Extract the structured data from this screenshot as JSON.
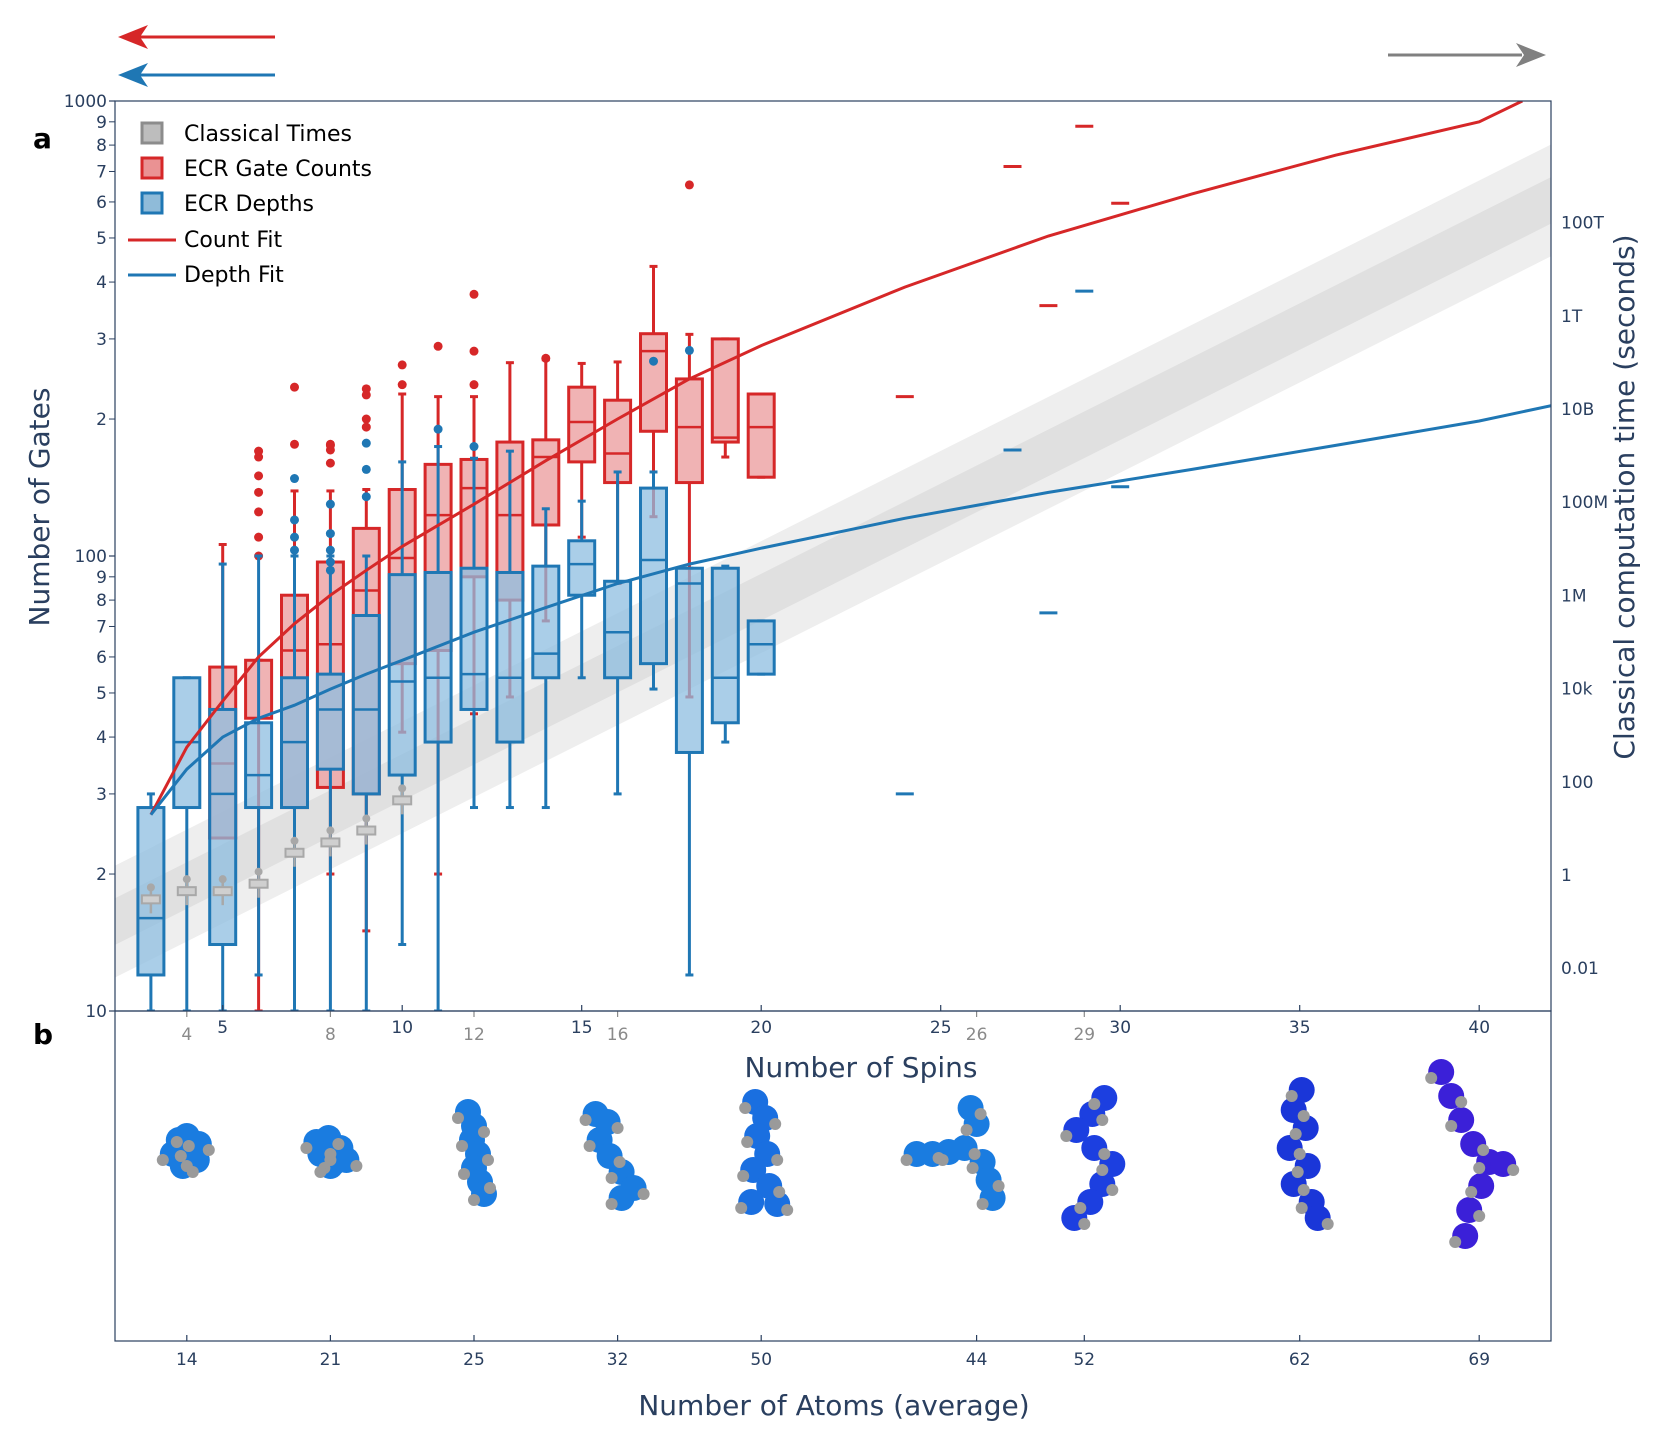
{
  "chart_data": {
    "type": "box",
    "panel_labels": {
      "a": "a",
      "b": "b"
    },
    "x_axis": {
      "title": "Number of Spins",
      "range": [
        2,
        42
      ],
      "ticks_main": [
        "5",
        "10",
        "15",
        "20",
        "25",
        "30",
        "35",
        "40"
      ],
      "ticks_molecule": [
        "4",
        "8",
        "12",
        "16",
        "26",
        "29"
      ]
    },
    "y_axis_left": {
      "title": "Number of Gates",
      "scale": "log",
      "range": [
        10,
        1000
      ],
      "major_labels": [
        "10",
        "100",
        "1000"
      ],
      "minor_labels": [
        "2",
        "3",
        "4",
        "5",
        "6",
        "7",
        "8",
        "9"
      ]
    },
    "y_axis_right": {
      "title": "Classical computation time (seconds)",
      "scale": "log",
      "labels": [
        {
          "text": "0.01",
          "value": 0.01
        },
        {
          "text": "1",
          "value": 1
        },
        {
          "text": "100",
          "value": 100
        },
        {
          "text": "10k",
          "value": 10000
        },
        {
          "text": "1M",
          "value": 1000000
        },
        {
          "text": "100M",
          "value": 100000000
        },
        {
          "text": "10B",
          "value": 10000000000
        },
        {
          "text": "1T",
          "value": 1000000000000
        },
        {
          "text": "100T",
          "value": 100000000000000
        }
      ]
    },
    "legend": [
      {
        "label": "Classical Times",
        "kind": "box",
        "color": "#8c8c8c"
      },
      {
        "label": "ECR Gate Counts",
        "kind": "box",
        "color": "#d62728"
      },
      {
        "label": "ECR Depths",
        "kind": "box",
        "color": "#1f77b4"
      },
      {
        "label": "Count Fit",
        "kind": "line",
        "color": "#d62728"
      },
      {
        "label": "Depth Fit",
        "kind": "line",
        "color": "#1f77b4"
      }
    ],
    "colors": {
      "count": "#d62728",
      "depth": "#1f77b4",
      "classical": "#8c8c8c",
      "band": "#d9d9d9"
    },
    "series": [
      {
        "name": "ECR Gate Counts",
        "color": "#d62728",
        "boxes": [
          {
            "x": 5,
            "low": 24,
            "q1": 24,
            "median": 35,
            "q3": 57,
            "high": 106,
            "outliers": []
          },
          {
            "x": 6,
            "low": 10,
            "q1": 44,
            "median": 44,
            "q3": 59,
            "high": 59,
            "outliers": [
              100,
              110,
              125,
              138,
              150,
              165,
              170
            ]
          },
          {
            "x": 7,
            "low": 10,
            "q1": 28,
            "median": 62,
            "q3": 82,
            "high": 139,
            "outliers": [
              176,
              235
            ]
          },
          {
            "x": 8,
            "low": 20,
            "q1": 31,
            "median": 64,
            "q3": 97,
            "high": 139,
            "outliers": [
              160,
              171,
              175,
              176
            ]
          },
          {
            "x": 9,
            "low": 15,
            "q1": 30,
            "median": 84,
            "q3": 115,
            "high": 140,
            "outliers": [
              192,
              200,
              226,
              233
            ]
          },
          {
            "x": 10,
            "low": 41,
            "q1": 58,
            "median": 99,
            "q3": 140,
            "high": 227,
            "outliers": [
              238,
              263
            ]
          },
          {
            "x": 11,
            "low": 20,
            "q1": 62,
            "median": 123,
            "q3": 159,
            "high": 224,
            "outliers": [
              289
            ]
          },
          {
            "x": 12,
            "low": 45,
            "q1": 90,
            "median": 141,
            "q3": 163,
            "high": 224,
            "outliers": [
              238,
              282,
              376
            ]
          },
          {
            "x": 13,
            "low": 49,
            "q1": 80,
            "median": 123,
            "q3": 178,
            "high": 266,
            "outliers": []
          },
          {
            "x": 14,
            "low": 72,
            "q1": 117,
            "median": 165,
            "q3": 180,
            "high": 270,
            "outliers": [
              272
            ]
          },
          {
            "x": 15,
            "low": 110,
            "q1": 161,
            "median": 197,
            "q3": 235,
            "high": 265,
            "outliers": []
          },
          {
            "x": 16,
            "low": 87,
            "q1": 145,
            "median": 168,
            "q3": 220,
            "high": 267,
            "outliers": []
          },
          {
            "x": 17,
            "low": 122,
            "q1": 188,
            "median": 282,
            "q3": 308,
            "high": 433,
            "outliers": []
          },
          {
            "x": 18,
            "low": 49,
            "q1": 145,
            "median": 192,
            "q3": 245,
            "high": 307,
            "outliers": [
              654
            ]
          },
          {
            "x": 19,
            "low": 165,
            "q1": 178,
            "median": 182,
            "q3": 300,
            "high": 300,
            "outliers": []
          },
          {
            "x": 20,
            "low": 149,
            "q1": 149,
            "median": 192,
            "q3": 227,
            "high": 227,
            "outliers": []
          },
          {
            "x": 24,
            "low": 224,
            "q1": 224,
            "median": 224,
            "q3": 224,
            "high": 224,
            "outliers": []
          },
          {
            "x": 27,
            "low": 718,
            "q1": 718,
            "median": 718,
            "q3": 718,
            "high": 718,
            "outliers": []
          },
          {
            "x": 28,
            "low": 355,
            "q1": 355,
            "median": 355,
            "q3": 355,
            "high": 355,
            "outliers": []
          },
          {
            "x": 29,
            "low": 880,
            "q1": 880,
            "median": 880,
            "q3": 880,
            "high": 880,
            "outliers": []
          },
          {
            "x": 30,
            "low": 596,
            "q1": 596,
            "median": 596,
            "q3": 596,
            "high": 596,
            "outliers": []
          }
        ]
      },
      {
        "name": "ECR Depths",
        "color": "#1f77b4",
        "boxes": [
          {
            "x": 3,
            "low": 10,
            "q1": 12,
            "median": 16,
            "q3": 28,
            "high": 30,
            "outliers": []
          },
          {
            "x": 4,
            "low": 10,
            "q1": 28,
            "median": 39,
            "q3": 54,
            "high": 54,
            "outliers": []
          },
          {
            "x": 5,
            "low": 10,
            "q1": 14,
            "median": 30,
            "q3": 46,
            "high": 96,
            "outliers": []
          },
          {
            "x": 6,
            "low": 12,
            "q1": 28,
            "median": 33,
            "q3": 43,
            "high": 100,
            "outliers": []
          },
          {
            "x": 7,
            "low": 10,
            "q1": 28,
            "median": 39,
            "q3": 54,
            "high": 100,
            "outliers": [
              103,
              110,
              120,
              148
            ]
          },
          {
            "x": 8,
            "low": 10,
            "q1": 34,
            "median": 46,
            "q3": 55,
            "high": 100,
            "outliers": [
              93,
              97,
              103,
              112,
              130
            ]
          },
          {
            "x": 9,
            "low": 10,
            "q1": 30,
            "median": 46,
            "q3": 74,
            "high": 100,
            "outliers": [
              135,
              155,
              177
            ]
          },
          {
            "x": 10,
            "low": 14,
            "q1": 33,
            "median": 53,
            "q3": 91,
            "high": 161,
            "outliers": []
          },
          {
            "x": 11,
            "low": 10,
            "q1": 39,
            "median": 54,
            "q3": 92,
            "high": 174,
            "outliers": [
              190
            ]
          },
          {
            "x": 12,
            "low": 28,
            "q1": 46,
            "median": 55,
            "q3": 94,
            "high": 164,
            "outliers": [
              174
            ]
          },
          {
            "x": 13,
            "low": 28,
            "q1": 39,
            "median": 54,
            "q3": 92,
            "high": 170,
            "outliers": []
          },
          {
            "x": 14,
            "low": 28,
            "q1": 54,
            "median": 61,
            "q3": 95,
            "high": 127,
            "outliers": []
          },
          {
            "x": 15,
            "low": 54,
            "q1": 82,
            "median": 96,
            "q3": 108,
            "high": 132,
            "outliers": []
          },
          {
            "x": 16,
            "low": 30,
            "q1": 54,
            "median": 68,
            "q3": 88,
            "high": 153,
            "outliers": []
          },
          {
            "x": 17,
            "low": 51,
            "q1": 58,
            "median": 98,
            "q3": 141,
            "high": 153,
            "outliers": [
              268
            ]
          },
          {
            "x": 18,
            "low": 12,
            "q1": 37,
            "median": 87,
            "q3": 94,
            "high": 94,
            "outliers": [
              283
            ]
          },
          {
            "x": 19,
            "low": 39,
            "q1": 43,
            "median": 54,
            "q3": 94,
            "high": 95,
            "outliers": []
          },
          {
            "x": 20,
            "low": 55,
            "q1": 55,
            "median": 64,
            "q3": 72,
            "high": 72,
            "outliers": []
          },
          {
            "x": 24,
            "low": 30,
            "q1": 30,
            "median": 30,
            "q3": 30,
            "high": 30,
            "outliers": []
          },
          {
            "x": 27,
            "low": 171,
            "q1": 171,
            "median": 171,
            "q3": 171,
            "high": 171,
            "outliers": []
          },
          {
            "x": 28,
            "low": 75,
            "q1": 75,
            "median": 75,
            "q3": 75,
            "high": 75,
            "outliers": []
          },
          {
            "x": 29,
            "low": 382,
            "q1": 382,
            "median": 382,
            "q3": 382,
            "high": 382,
            "outliers": []
          },
          {
            "x": 30,
            "low": 142,
            "q1": 142,
            "median": 142,
            "q3": 142,
            "high": 142,
            "outliers": []
          }
        ]
      },
      {
        "name": "Classical Times",
        "color": "#8c8c8c",
        "unit": "seconds",
        "boxes": [
          {
            "x": 3,
            "value": 0.3
          },
          {
            "x": 4,
            "value": 0.45
          },
          {
            "x": 5,
            "value": 0.45
          },
          {
            "x": 6,
            "value": 0.65
          },
          {
            "x": 7,
            "value": 3
          },
          {
            "x": 8,
            "value": 5
          },
          {
            "x": 9,
            "value": 9
          },
          {
            "x": 10,
            "value": 40
          }
        ]
      }
    ],
    "fits": [
      {
        "name": "Count Fit",
        "color": "#d62728",
        "x": [
          3,
          4,
          5,
          6,
          7,
          8,
          9,
          10,
          12,
          14,
          16,
          18,
          20,
          24,
          28,
          32,
          36,
          40,
          41.2
        ],
        "y": [
          27,
          38,
          48,
          60,
          71,
          82,
          93,
          105,
          130,
          162,
          200,
          245,
          290,
          390,
          505,
          625,
          760,
          900,
          1000
        ]
      },
      {
        "name": "Depth Fit",
        "color": "#1f77b4",
        "x": [
          3,
          4,
          5,
          6,
          7,
          8,
          9,
          10,
          12,
          14,
          16,
          18,
          20,
          24,
          28,
          32,
          36,
          40,
          42
        ],
        "y": [
          27,
          34,
          40,
          44,
          47,
          51,
          55,
          59,
          68,
          77,
          87,
          96,
          104,
          121,
          138,
          155,
          175,
          198,
          214
        ]
      }
    ],
    "classical_band": {
      "x": [
        2,
        42
      ],
      "y_mid_seconds": [
        0.1,
        300000000000000
      ],
      "half_width_log10_inner": 0.5,
      "half_width_log10_outer": 1.2
    },
    "direction_arrows": [
      "left-red",
      "left-blue",
      "right-grey"
    ],
    "molecules": {
      "axis_title": "Number of Atoms (average)",
      "items": [
        {
          "x": 4,
          "atoms": "14",
          "color": "#1a7ce0"
        },
        {
          "x": 8,
          "atoms": "21",
          "color": "#1a7ce0"
        },
        {
          "x": 12,
          "atoms": "25",
          "color": "#1a7ce0"
        },
        {
          "x": 16,
          "atoms": "32",
          "color": "#1a7ce0"
        },
        {
          "x": 20,
          "atoms": "50",
          "color": "#1a6fe0"
        },
        {
          "x": 26,
          "atoms": "44",
          "color": "#1a7ce0"
        },
        {
          "x": 29,
          "atoms": "52",
          "color": "#1c3fe0"
        },
        {
          "x": 35,
          "atoms": "62",
          "color": "#1a36d8"
        },
        {
          "x": 40,
          "atoms": "69",
          "color": "#3b20d8"
        }
      ]
    }
  }
}
